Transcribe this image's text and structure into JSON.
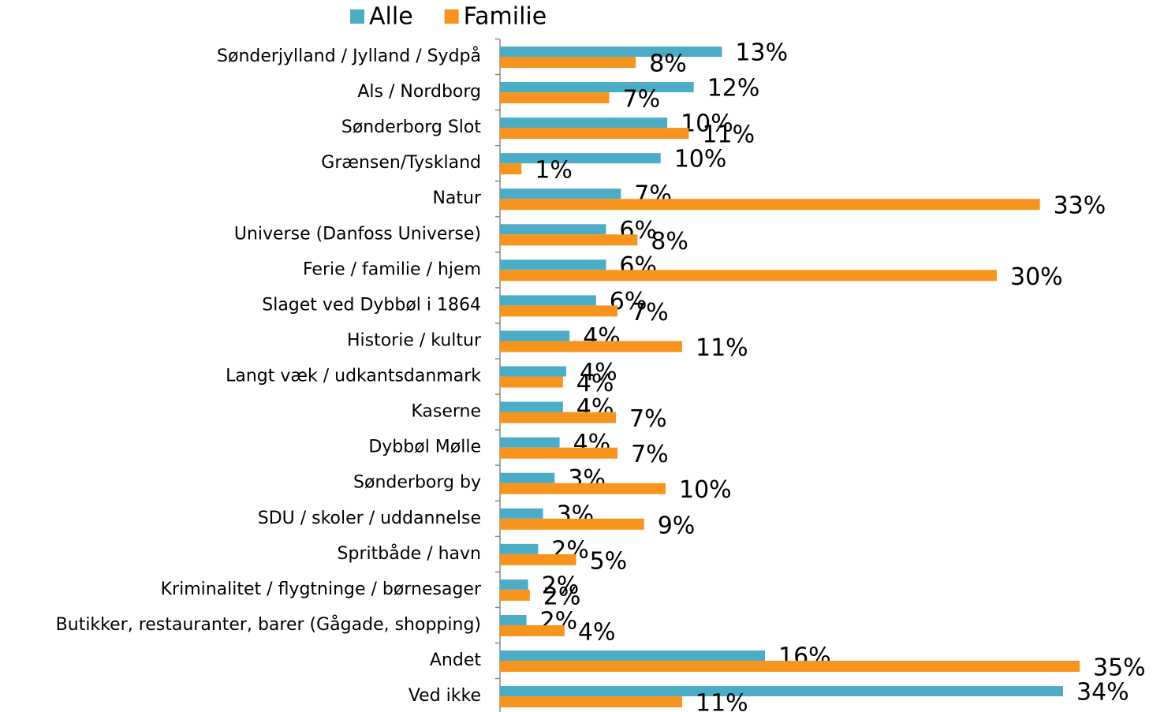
{
  "chart_data": {
    "type": "bar",
    "orientation": "horizontal",
    "categories": [
      "Sønderjylland / Jylland / Sydpå",
      "Als / Nordborg",
      "Sønderborg Slot",
      "Grænsen/Tyskland",
      "Natur",
      "Universe (Danfoss Universe)",
      "Ferie / familie / hjem",
      "Slaget ved Dybbøl i 1864",
      "Historie / kultur",
      "Langt væk / udkantsdanmark",
      "Kaserne",
      "Dybbøl Mølle",
      "Sønderborg by",
      "SDU / skoler / uddannelse",
      "Spritbåde / havn",
      "Kriminalitet / flygtninge / børnesager",
      "Butikker, restauranter, barer (Gågade, shopping)",
      "Andet",
      "Ved ikke"
    ],
    "series": [
      {
        "name": "Alle",
        "color": "#4bacc6",
        "values": [
          13.4,
          11.7,
          10.1,
          9.7,
          7.3,
          6.4,
          6.4,
          5.8,
          4.2,
          4.0,
          3.8,
          3.6,
          3.3,
          2.6,
          2.3,
          1.7,
          1.6,
          16.0,
          34.0
        ],
        "value_labels": [
          "13%",
          "12%",
          "10%",
          "10%",
          "7%",
          "6%",
          "6%",
          "6%",
          "4%",
          "4%",
          "4%",
          "4%",
          "3%",
          "3%",
          "2%",
          "2%",
          "2%",
          "16%",
          "34%"
        ]
      },
      {
        "name": "Familie",
        "color": "#f7941d",
        "values": [
          8.2,
          6.6,
          11.4,
          1.3,
          32.6,
          8.3,
          30.0,
          7.1,
          11.0,
          3.8,
          7.0,
          7.1,
          10.0,
          8.7,
          4.6,
          1.8,
          3.9,
          35.0,
          11.0
        ],
        "value_labels": [
          "8%",
          "7%",
          "11%",
          "1%",
          "33%",
          "8%",
          "30%",
          "7%",
          "11%",
          "4%",
          "7%",
          "7%",
          "10%",
          "9%",
          "5%",
          "2%",
          "4%",
          "35%",
          "11%"
        ]
      }
    ],
    "xlim": [
      0,
      40
    ],
    "legend": "top"
  }
}
